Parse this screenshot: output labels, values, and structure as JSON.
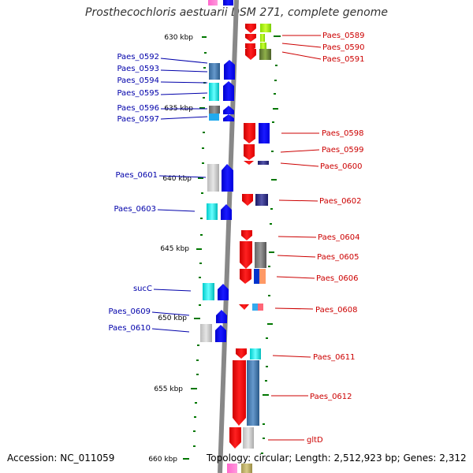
{
  "title": "Prosthecochloris aestuarii DSM 271, complete genome",
  "footer": {
    "accession": "Accession: NC_011059",
    "topology": "Topology: circular; Length: 2,512,923 bp; Genes: 2,312"
  },
  "colors": {
    "forward_label": "#0000aa",
    "reverse_label": "#cc0000",
    "forward_cds": "#0000ff",
    "reverse_cds": "#ff0000",
    "tick": "#007700",
    "backbone": "#888888"
  },
  "scale_labels": [
    "630 kbp",
    "635 kbp",
    "640 kbp",
    "645 kbp",
    "650 kbp",
    "655 kbp",
    "660 kbp"
  ],
  "forward_genes": [
    "Paes_0592",
    "Paes_0593",
    "Paes_0594",
    "Paes_0595",
    "Paes_0596",
    "Paes_0597",
    "Paes_0601",
    "Paes_0603",
    "sucC",
    "Paes_0609",
    "Paes_0610"
  ],
  "reverse_genes": [
    "Paes_0589",
    "Paes_0590",
    "Paes_0591",
    "Paes_0598",
    "Paes_0599",
    "Paes_0600",
    "Paes_0602",
    "Paes_0604",
    "Paes_0605",
    "Paes_0606",
    "Paes_0608",
    "Paes_0611",
    "Paes_0612",
    "gltD"
  ]
}
